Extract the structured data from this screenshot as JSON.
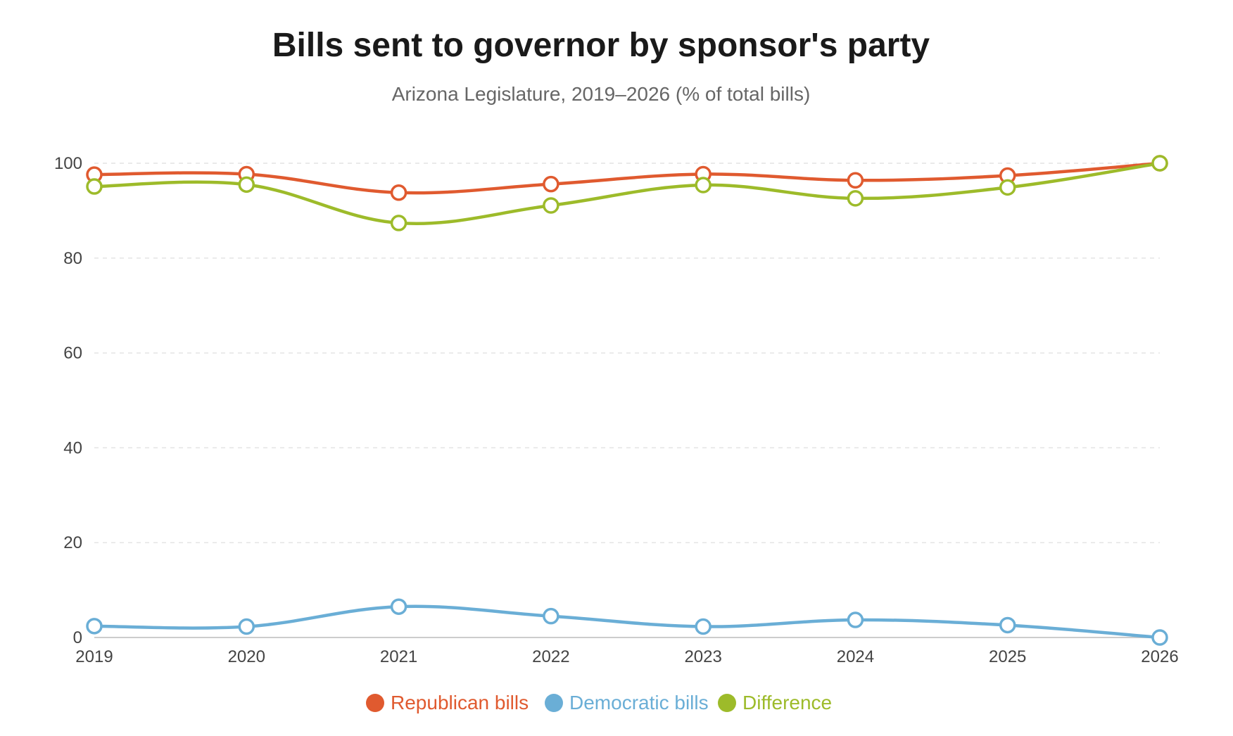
{
  "chart_data": {
    "type": "line",
    "title": "Bills sent to governor by sponsor's party",
    "subtitle": "Arizona Legislature, 2019–2026 (% of total bills)",
    "xlabel": "",
    "ylabel": "",
    "categories": [
      "2019",
      "2020",
      "2021",
      "2022",
      "2023",
      "2024",
      "2025",
      "2026"
    ],
    "ylim": [
      0,
      100
    ],
    "yticks": [
      0,
      20,
      40,
      60,
      80,
      100
    ],
    "grid": true,
    "legend_position": "bottom",
    "series": [
      {
        "name": "Republican bills",
        "color": "#e05a2f",
        "values": [
          97.6,
          97.7,
          93.8,
          95.6,
          97.7,
          96.4,
          97.4,
          100
        ]
      },
      {
        "name": "Democratic bills",
        "color": "#6aaed6",
        "values": [
          2.4,
          2.3,
          6.5,
          4.5,
          2.3,
          3.7,
          2.6,
          0
        ]
      },
      {
        "name": "Difference",
        "color": "#9dbb2a",
        "values": [
          95.1,
          95.5,
          87.4,
          91.1,
          95.4,
          92.6,
          94.9,
          100
        ]
      }
    ]
  }
}
